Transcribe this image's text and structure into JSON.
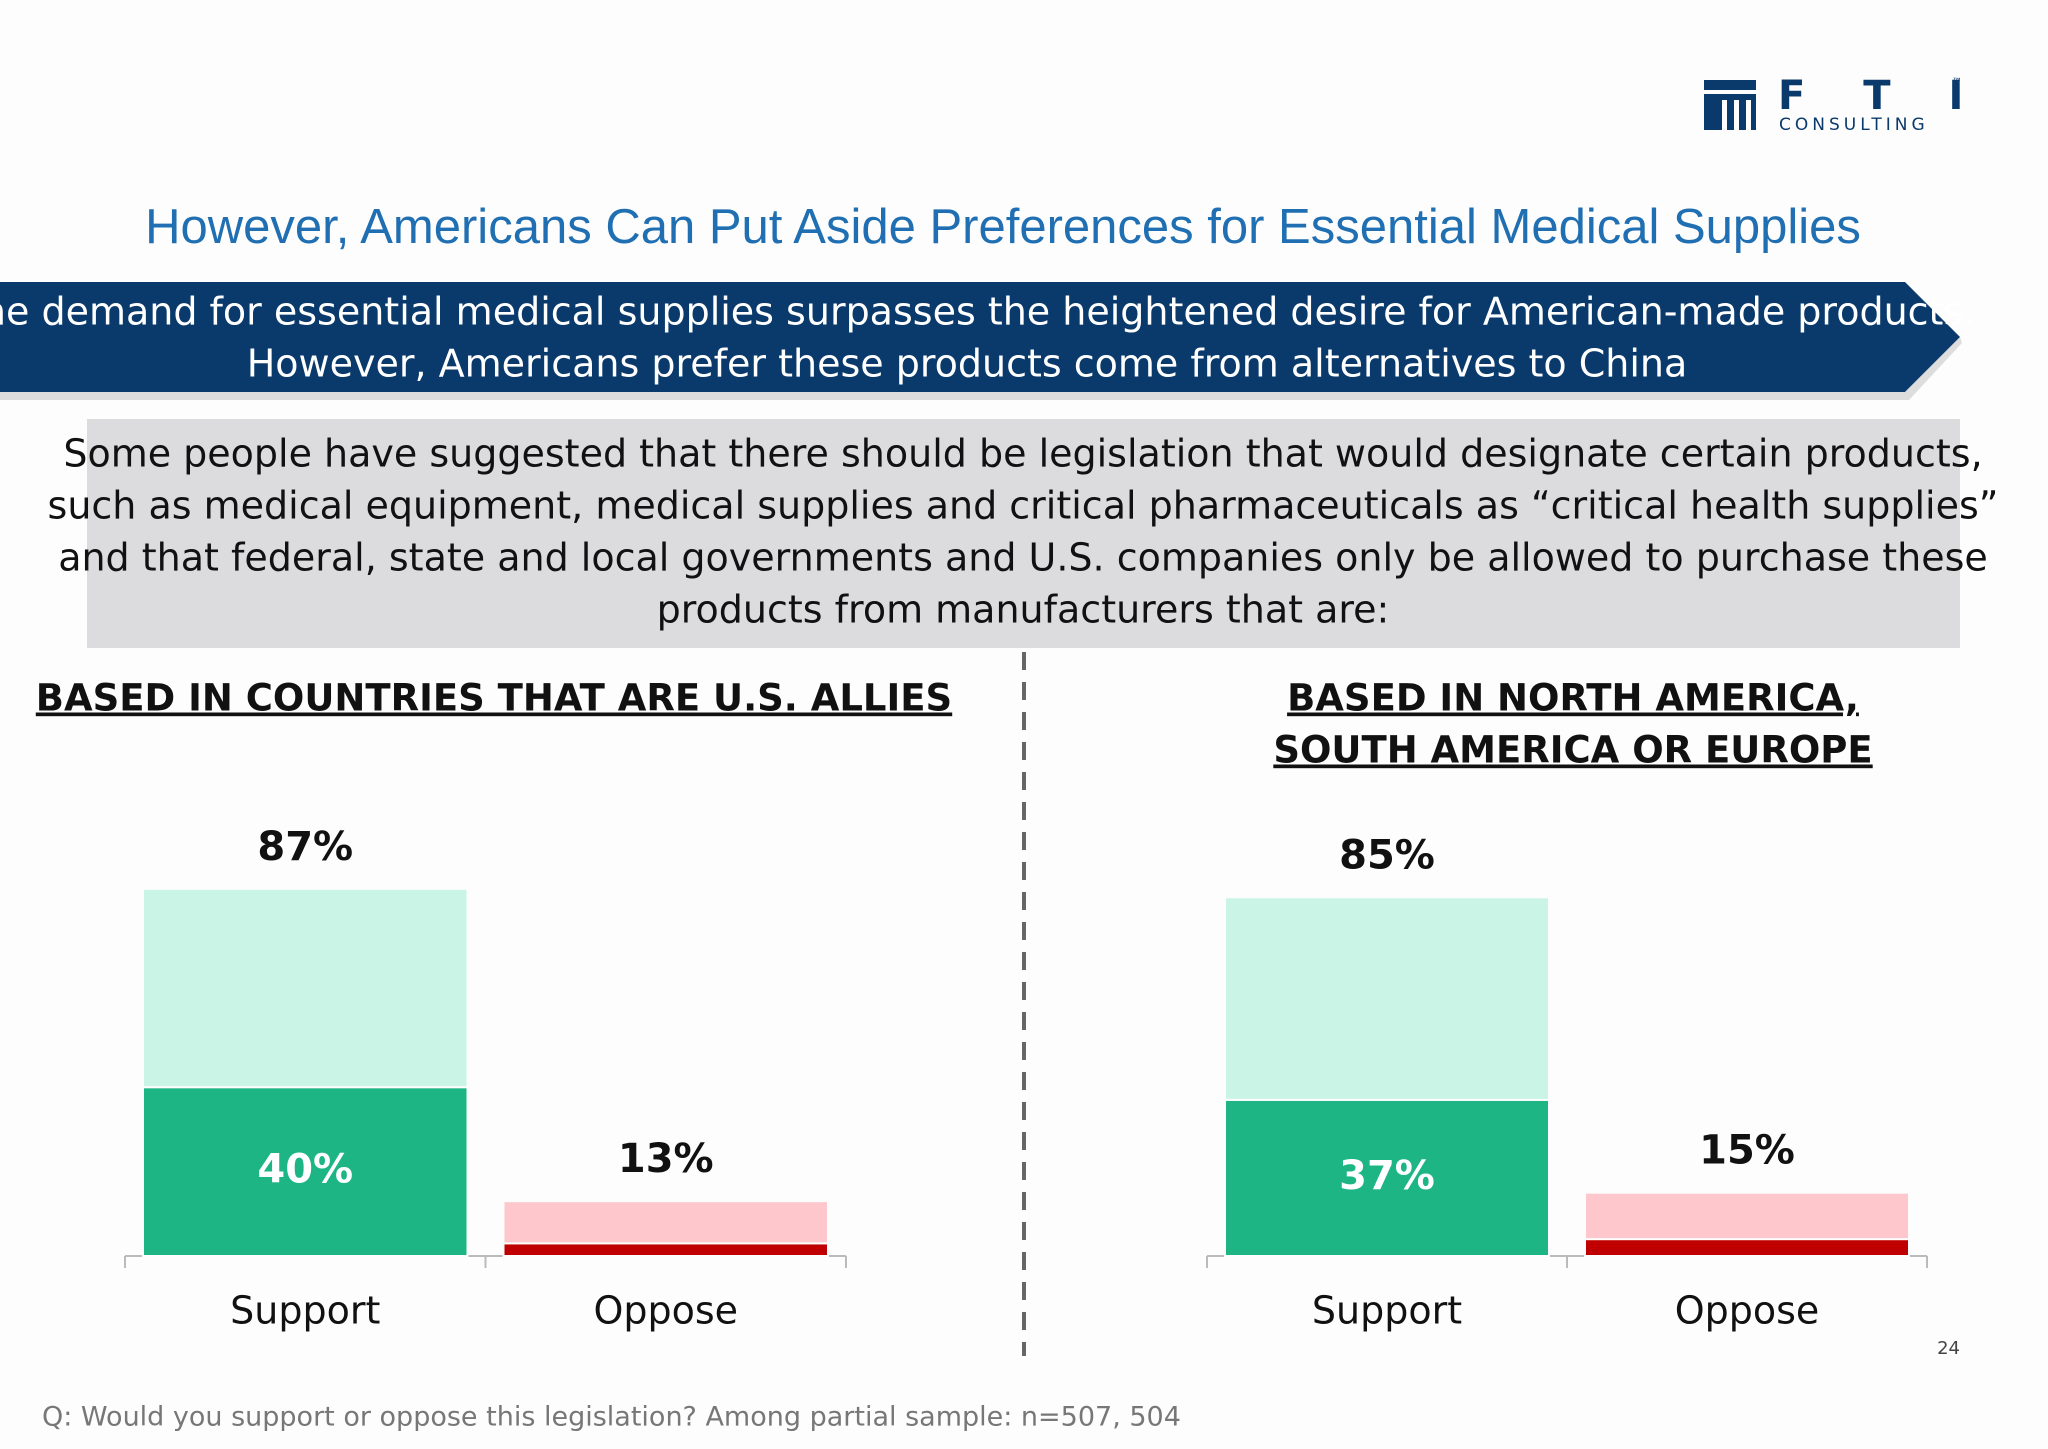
{
  "logo": {
    "name": "F T I",
    "sub": "CONSULTING",
    "tm": "™"
  },
  "header": {
    "title": "However, Americans Can Put Aside Preferences for Essential Medical Supplies"
  },
  "banner": {
    "lines": [
      "The demand for essential medical supplies surpasses the heightened desire for American-made products.",
      "However, Americans prefer these products come from alternatives to China"
    ]
  },
  "question_box": {
    "lines": [
      "Some people have suggested that there should be legislation that would designate certain products,",
      "such as medical equipment, medical supplies and critical pharmaceuticals as “critical health supplies”",
      "and that federal, state and local governments and U.S. companies only be allowed to purchase these",
      "products from manufacturers that are:"
    ]
  },
  "chart_data": [
    {
      "type": "bar",
      "stacked": true,
      "title": [
        "BASED IN COUNTRIES THAT ARE U.S. ALLIES"
      ],
      "categories": [
        "Support",
        "Oppose"
      ],
      "series": [
        {
          "color": "#1db584",
          "values": [
            40,
            3
          ],
          "value_labels": [
            "40%",
            null
          ]
        },
        {
          "color": "#c9f4e6",
          "values": [
            47,
            10
          ]
        }
      ],
      "totals": [
        87,
        13
      ],
      "total_labels": [
        "87%",
        "13%"
      ],
      "bar_colors": {
        "Oppose": [
          "#c00000",
          "#fdc7cb"
        ]
      }
    },
    {
      "type": "bar",
      "stacked": true,
      "title": [
        "BASED IN NORTH AMERICA,",
        "SOUTH AMERICA OR EUROPE"
      ],
      "categories": [
        "Support",
        "Oppose"
      ],
      "series": [
        {
          "color": "#1db584",
          "values": [
            37,
            4
          ],
          "value_labels": [
            "37%",
            null
          ]
        },
        {
          "color": "#c9f4e6",
          "values": [
            48,
            11
          ]
        }
      ],
      "totals": [
        85,
        15
      ],
      "total_labels": [
        "85%",
        "15%"
      ],
      "bar_colors": {
        "Oppose": [
          "#c00000",
          "#fdc7cb"
        ]
      }
    }
  ],
  "footnote": "Q: Would you support or oppose this legislation? Among partial sample: n=507, 504",
  "page_number": "24"
}
